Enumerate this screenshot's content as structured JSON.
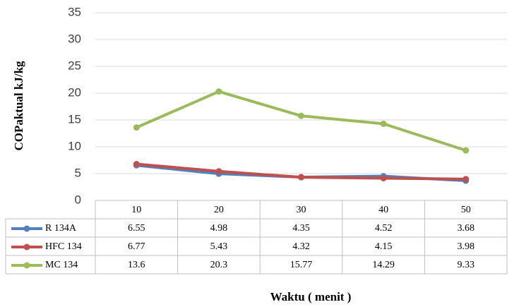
{
  "chart_data": {
    "type": "line",
    "y_label": "COPaktual kJ/kg",
    "x_label": "Waktu ( menit )",
    "categories": [
      "10",
      "20",
      "30",
      "40",
      "50"
    ],
    "series": [
      {
        "name": "R 134A",
        "color": "#4f81bd",
        "values": [
          6.55,
          4.98,
          4.35,
          4.52,
          3.68
        ]
      },
      {
        "name": "HFC 134",
        "color": "#c0504d",
        "values": [
          6.77,
          5.43,
          4.32,
          4.15,
          3.98
        ]
      },
      {
        "name": "MC 134",
        "color": "#9bbb59",
        "values": [
          13.6,
          20.3,
          15.77,
          14.29,
          9.33
        ]
      }
    ],
    "ylim": [
      0,
      35
    ],
    "yticks": [
      0,
      5,
      10,
      15,
      20,
      25,
      30,
      35
    ],
    "grid": true
  }
}
